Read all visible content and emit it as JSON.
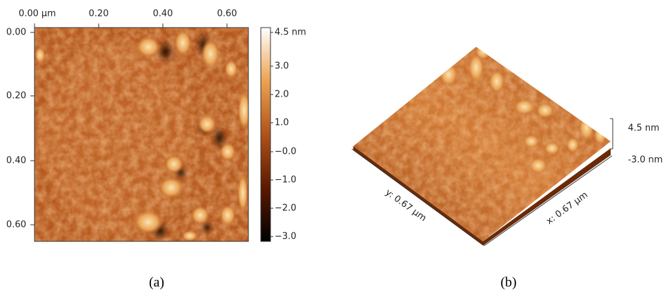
{
  "panel_a": {
    "x_ticks": [
      "0.00 µm",
      "0.20",
      "0.40",
      "0.60"
    ],
    "y_ticks": [
      "0.00",
      "0.20",
      "0.40",
      "0.60"
    ],
    "colorbar_ticks": [
      "4.5 nm",
      "3.0",
      "2.0",
      "1.0",
      "−0.0",
      "−1.0",
      "−2.0",
      "−3.0"
    ],
    "caption": "(a)"
  },
  "panel_b": {
    "z_top": "4.5 nm",
    "z_bottom": "-3.0 nm",
    "y_axis": "y: 0.67 µm",
    "x_axis": "x: 0.67 µm",
    "caption": "(b)"
  }
}
